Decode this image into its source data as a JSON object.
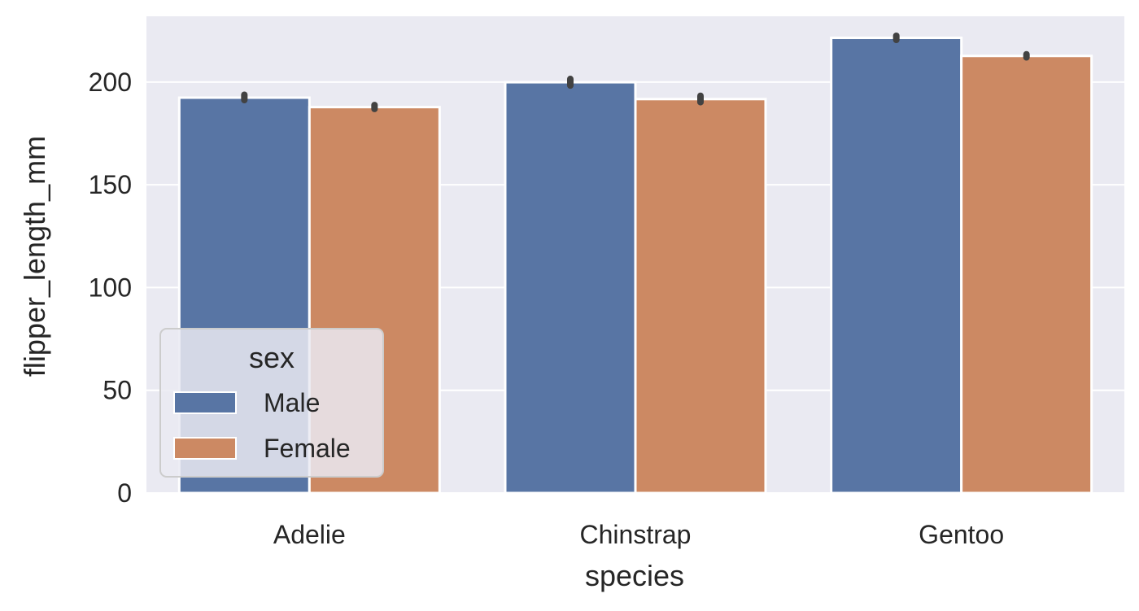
{
  "chart_data": {
    "type": "bar",
    "title": "",
    "xlabel": "species",
    "ylabel": "flipper_length_mm",
    "categories": [
      "Adelie",
      "Chinstrap",
      "Gentoo"
    ],
    "ylim": [
      0,
      232
    ],
    "yticks": [
      0,
      50,
      100,
      150,
      200
    ],
    "grid": true,
    "series": [
      {
        "name": "Male",
        "color": "#5875a4",
        "values": [
          192.4,
          199.9,
          221.5
        ],
        "ci": [
          [
            191.2,
            193.8
          ],
          [
            198.3,
            201.5
          ],
          [
            220.5,
            222.5
          ]
        ]
      },
      {
        "name": "Female",
        "color": "#cc8963",
        "values": [
          187.8,
          191.7,
          212.7
        ],
        "ci": [
          [
            186.9,
            188.8
          ],
          [
            190.2,
            193.3
          ],
          [
            212.0,
            213.5
          ]
        ]
      }
    ],
    "legend": {
      "title": "sex",
      "placement": "lower-left"
    },
    "colors": {
      "plot_background": "#eaeaf2",
      "grid": "#ffffff",
      "errorbar": "#424242"
    }
  }
}
